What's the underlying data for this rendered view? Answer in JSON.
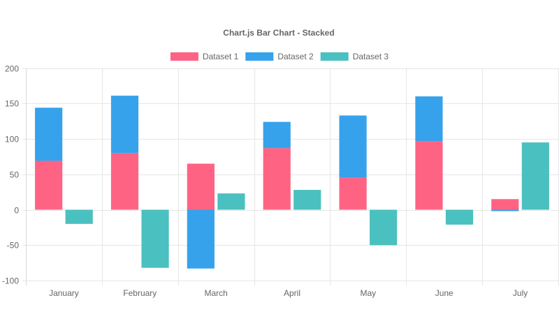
{
  "chart_data": {
    "type": "bar",
    "title": "Chart.js Bar Chart - Stacked",
    "categories": [
      "January",
      "February",
      "March",
      "April",
      "May",
      "June",
      "July"
    ],
    "ylim": [
      -100,
      200
    ],
    "yticks": [
      200,
      150,
      100,
      50,
      0,
      -50,
      -100
    ],
    "grid": true,
    "legend_position": "top",
    "stacks": [
      {
        "id": "Stack 0",
        "series": [
          "Dataset 1",
          "Dataset 2"
        ]
      },
      {
        "id": "Stack 1",
        "series": [
          "Dataset 3"
        ]
      }
    ],
    "series": [
      {
        "name": "Dataset 1",
        "color": "#ff6384",
        "stack": "Stack 0",
        "values": [
          69,
          80,
          65,
          87,
          45,
          97,
          15
        ]
      },
      {
        "name": "Dataset 2",
        "color": "#36a2eb",
        "stack": "Stack 0",
        "values": [
          75,
          81,
          -83,
          37,
          88,
          63,
          -2
        ]
      },
      {
        "name": "Dataset 3",
        "color": "#4bc0c0",
        "stack": "Stack 1",
        "values": [
          -20,
          -82,
          23,
          28,
          -50,
          -21,
          95
        ]
      }
    ]
  }
}
